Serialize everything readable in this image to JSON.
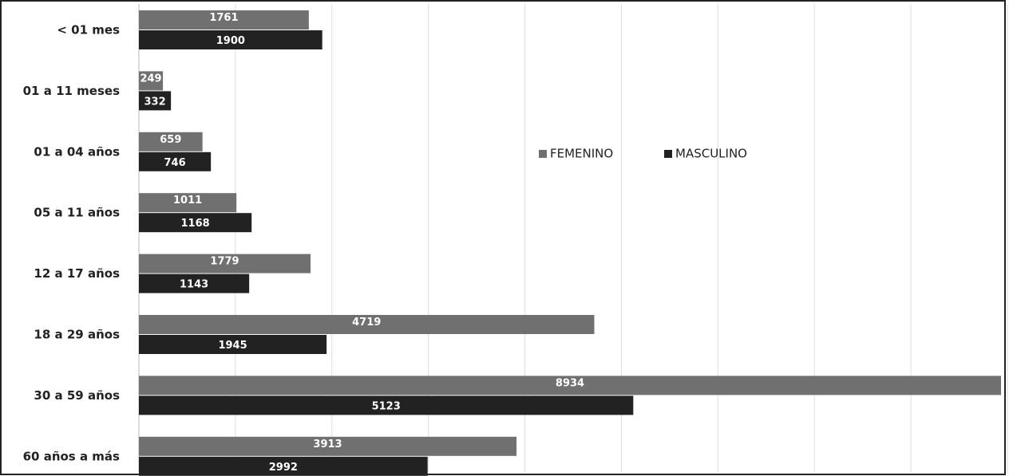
{
  "chart_data": {
    "type": "barh",
    "categories": [
      "< 01 mes",
      "01 a 11 meses",
      "01 a 04 años",
      "05 a 11 años",
      "12 a 17 años",
      "18 a 29 años",
      "30 a 59 años",
      "60 años a más"
    ],
    "series": [
      {
        "name": "FEMENINO",
        "color": "#707070",
        "values": [
          1761,
          249,
          659,
          1011,
          1779,
          4719,
          8934,
          3913
        ]
      },
      {
        "name": "MASCULINO",
        "color": "#222222",
        "values": [
          1900,
          332,
          746,
          1168,
          1143,
          1945,
          5123,
          2992
        ]
      }
    ],
    "xlim": [
      0,
      9000
    ],
    "xticks": [
      0,
      1000,
      2000,
      3000,
      4000,
      5000,
      6000,
      7000,
      8000,
      9000
    ],
    "grid": true,
    "legend": "center"
  }
}
